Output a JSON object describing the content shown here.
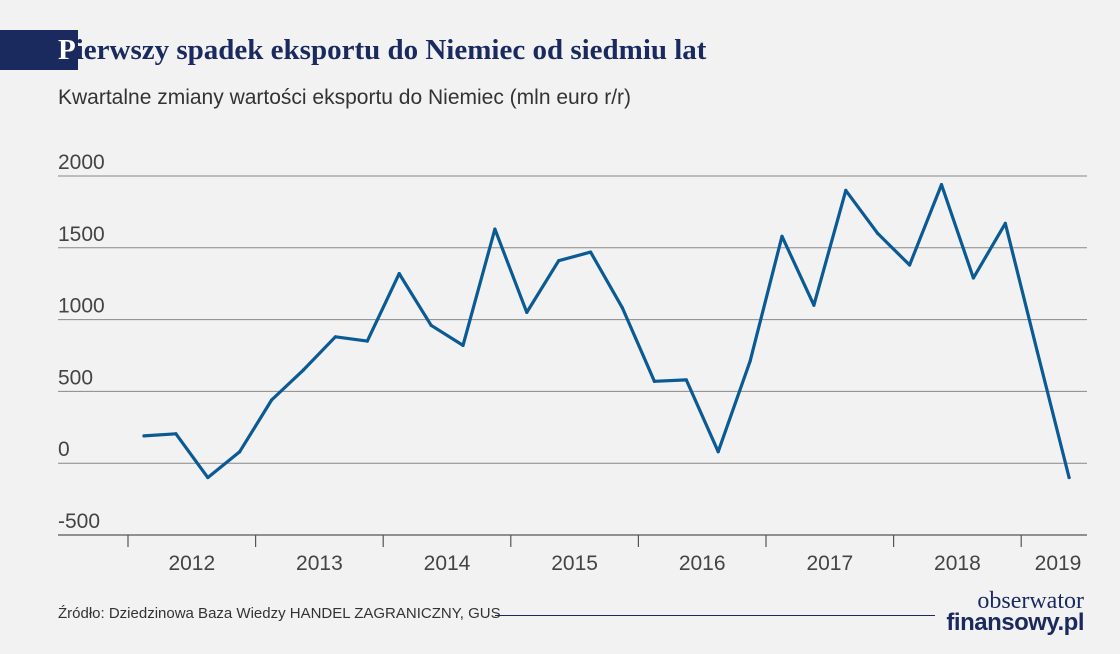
{
  "header": {
    "title_first": "P",
    "title_rest": "ierwszy spadek eksportu do Niemiec od siedmiu lat",
    "subtitle": "Kwartalne zmiany wartości eksportu do Niemiec (mln euro r/r)"
  },
  "footer": {
    "source": "Źródło: Dziedzinowa Baza Wiedzy HANDEL ZAGRANICZNY, GUS",
    "logo_line1": "obserwator",
    "logo_line2": "finansowy.pl"
  },
  "colors": {
    "line": "#0a5a94",
    "grid": "#888888",
    "title": "#1a2a5e"
  },
  "chart_data": {
    "type": "line",
    "title": "Pierwszy spadek eksportu do Niemiec od siedmiu lat",
    "subtitle": "Kwartalne zmiany wartości eksportu do Niemiec (mln euro r/r)",
    "ylim": [
      -500,
      2000
    ],
    "yticks": [
      2000,
      1500,
      1000,
      500,
      0,
      -500
    ],
    "xlabels": [
      "2012",
      "2013",
      "2014",
      "2015",
      "2016",
      "2017",
      "2018",
      "2019"
    ],
    "grid": true,
    "series": [
      {
        "values": [
          190,
          205,
          -100,
          80,
          440,
          650,
          880,
          850,
          1320,
          960,
          820,
          1630,
          1050,
          1410,
          1470,
          1080,
          570,
          580,
          80,
          710,
          1580,
          1100,
          1900,
          1600,
          1380,
          1940,
          1290,
          1670,
          780,
          -100
        ]
      }
    ]
  }
}
